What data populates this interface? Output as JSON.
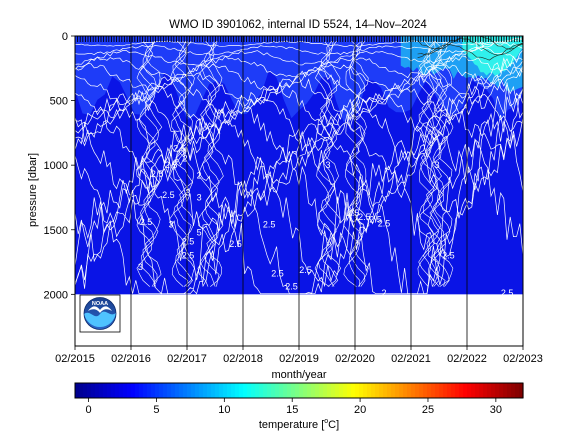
{
  "chart_data": [
    {
      "type": "heatmap",
      "title": "WMO ID 3901062, internal ID 5524, 14–Nov–2024",
      "xlabel": "month/year",
      "ylabel": "pressure [dbar]",
      "x_ticks": [
        "02/2015",
        "02/2016",
        "02/2017",
        "02/2018",
        "02/2019",
        "02/2020",
        "02/2021",
        "02/2022",
        "02/2023"
      ],
      "x_tick_positions": [
        2015.083,
        2016.083,
        2017.083,
        2018.083,
        2019.083,
        2020.083,
        2021.083,
        2022.083,
        2023.083
      ],
      "xlim": [
        2015.083,
        2023.083
      ],
      "y_ticks": [
        "0",
        "500",
        "1000",
        "1500",
        "2000"
      ],
      "y_tick_values": [
        0,
        500,
        1000,
        1500,
        2000
      ],
      "ylim": [
        2400,
        0
      ],
      "y_reversed": true,
      "data_pressure_range": [
        0,
        2000
      ],
      "grid": "vertical lines at x ticks",
      "contour_labels": [
        {
          "text": "2.5",
          "x": 2016.95,
          "y": 870
        },
        {
          "text": "2.5",
          "x": 2016.8,
          "y": 1000
        },
        {
          "text": "2",
          "x": 2017.05,
          "y": 950
        },
        {
          "text": "2.5",
          "x": 2016.55,
          "y": 1070
        },
        {
          "text": "2",
          "x": 2017.3,
          "y": 1080
        },
        {
          "text": "3",
          "x": 2017.1,
          "y": 1210
        },
        {
          "text": "2.5",
          "x": 2016.75,
          "y": 1230
        },
        {
          "text": "3",
          "x": 2017.3,
          "y": 1250
        },
        {
          "text": "2.5",
          "x": 2016.35,
          "y": 1440
        },
        {
          "text": "3",
          "x": 2016.8,
          "y": 1460
        },
        {
          "text": "5",
          "x": 2017.3,
          "y": 1520
        },
        {
          "text": "2.5",
          "x": 2017.1,
          "y": 1590
        },
        {
          "text": "2.5",
          "x": 2017.95,
          "y": 1610
        },
        {
          "text": "2.5",
          "x": 2018.55,
          "y": 1460
        },
        {
          "text": "3",
          "x": 2019.6,
          "y": 1000
        },
        {
          "text": "2.5",
          "x": 2020.05,
          "y": 1370
        },
        {
          "text": "2.5",
          "x": 2020.25,
          "y": 1400
        },
        {
          "text": "2.5",
          "x": 2020.6,
          "y": 1450
        },
        {
          "text": "2.5",
          "x": 2020.45,
          "y": 1420
        },
        {
          "text": "2.5",
          "x": 2017.1,
          "y": 1700
        },
        {
          "text": "3",
          "x": 2016.25,
          "y": 1790
        },
        {
          "text": "2.5",
          "x": 2019.2,
          "y": 1810
        },
        {
          "text": "2.5",
          "x": 2018.7,
          "y": 1840
        },
        {
          "text": "2.5",
          "x": 2018.95,
          "y": 1940
        },
        {
          "text": "2.5",
          "x": 2021.75,
          "y": 1700
        },
        {
          "text": "2.5",
          "x": 2022.8,
          "y": 1990
        },
        {
          "text": "2",
          "x": 2020.6,
          "y": 1990
        },
        {
          "text": "13",
          "x": 2022.3,
          "y": 70
        },
        {
          "text": "3",
          "x": 2021.55,
          "y": 1000
        }
      ]
    },
    {
      "type": "colorbar",
      "label": "temperature [°C]",
      "label_text": "temperature [",
      "label_unit_super": "o",
      "label_unit_tail": "C]",
      "ticks": [
        "0",
        "5",
        "10",
        "15",
        "20",
        "25",
        "30"
      ],
      "tick_values": [
        0,
        5,
        10,
        15,
        20,
        25,
        30
      ],
      "range": [
        -1,
        32
      ],
      "colormap": [
        "#00008f",
        "#0000ff",
        "#0080ff",
        "#00ffff",
        "#80ff80",
        "#ffff00",
        "#ff8000",
        "#ff0000",
        "#800000"
      ]
    }
  ],
  "colors": {
    "field_main": "#0a14e6",
    "field_upper": "#1e3cf8",
    "field_warm": "#1ea0f4",
    "field_hot": "#30f0ec",
    "contour": "#ffffff",
    "contour_warm": "#1e2a20",
    "ticks": "#000000"
  },
  "logo": {
    "text": "NOAA"
  }
}
